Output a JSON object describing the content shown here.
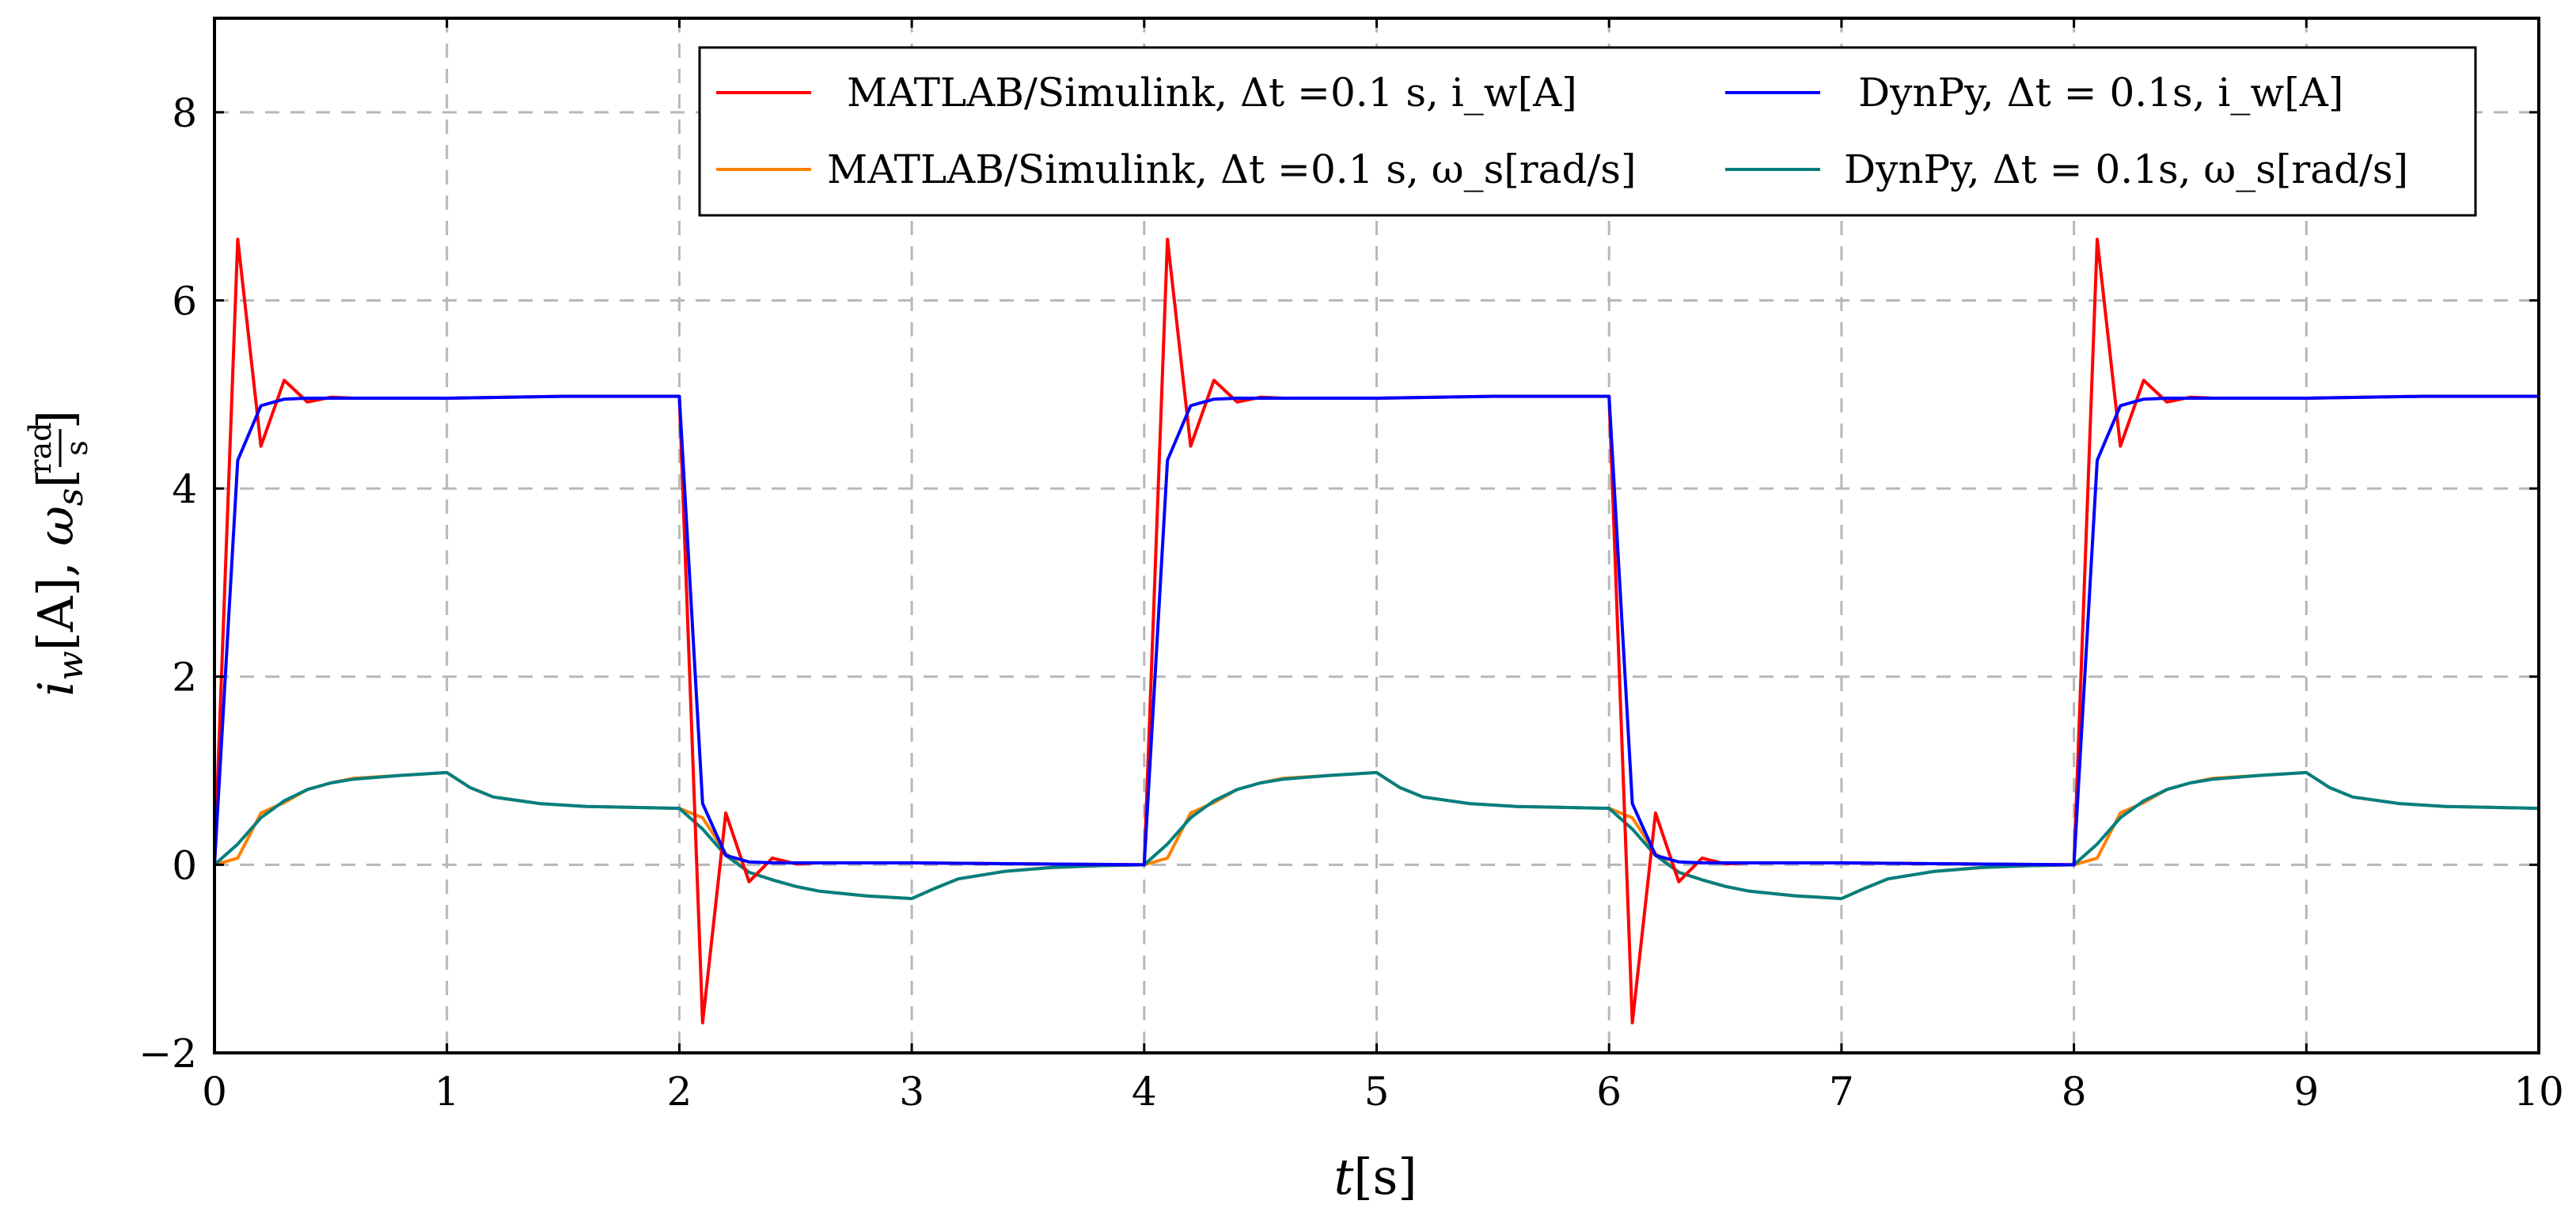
{
  "chart_data": {
    "type": "line",
    "title": "",
    "xlabel": "t[s]",
    "ylabel": "i_w[A], ω_s[rad/s]",
    "xlim": [
      0,
      10
    ],
    "ylim": [
      -2,
      9
    ],
    "grid": true,
    "legend_position": "top-right",
    "x_ticks": [
      0,
      1,
      2,
      3,
      4,
      5,
      6,
      7,
      8,
      9,
      10
    ],
    "y_ticks": [
      -2,
      0,
      2,
      4,
      6,
      8
    ],
    "x_tick_labels": [
      "0",
      "1",
      "2",
      "3",
      "4",
      "5",
      "6",
      "7",
      "8",
      "9",
      "10"
    ],
    "y_tick_labels": [
      "−2",
      "0",
      "2",
      "4",
      "6",
      "8"
    ],
    "x_label_var": "t",
    "x_label_unit": "[s]",
    "y_label_i": "i",
    "y_label_i_sub": "w",
    "y_label_i_unit": "[A], ",
    "y_label_w": "ω",
    "y_label_w_sub": "s",
    "y_label_frac_num": "rad",
    "y_label_frac_den": "s",
    "series": [
      {
        "name": "MATLAB/Simulink, Δt =0.1 s, i_w[A]",
        "legend_text": "MATLAB/Simulink, Δt =0.1 s, i_w[A]",
        "color": "#ff0000",
        "x": [
          0,
          0.1,
          0.2,
          0.3,
          0.4,
          0.5,
          0.6,
          1.0,
          1.5,
          2.0,
          2.1,
          2.2,
          2.3,
          2.4,
          2.5,
          2.6,
          3.0,
          3.5,
          4.0,
          4.1,
          4.2,
          4.3,
          4.4,
          4.5,
          4.6,
          5.0,
          5.5,
          6.0,
          6.1,
          6.2,
          6.3,
          6.4,
          6.5,
          6.6,
          7.0,
          7.5,
          8.0,
          8.1,
          8.2,
          8.3,
          8.4,
          8.5,
          8.6,
          9.0,
          9.5,
          10.0
        ],
        "values": [
          0,
          6.65,
          4.45,
          5.15,
          4.92,
          4.97,
          4.96,
          4.96,
          4.98,
          4.98,
          -1.68,
          0.55,
          -0.18,
          0.07,
          0.01,
          0.02,
          0.02,
          0.01,
          0.0,
          6.65,
          4.45,
          5.15,
          4.92,
          4.97,
          4.96,
          4.96,
          4.98,
          4.98,
          -1.68,
          0.55,
          -0.18,
          0.07,
          0.01,
          0.02,
          0.02,
          0.01,
          0.0,
          6.65,
          4.45,
          5.15,
          4.92,
          4.97,
          4.96,
          4.96,
          4.98,
          4.98
        ]
      },
      {
        "name": "DynPy, Δt = 0.1s, i_w[A]",
        "legend_text": "DynPy, Δt = 0.1s, i_w[A]",
        "color": "#0000ff",
        "x": [
          0,
          0.1,
          0.2,
          0.3,
          0.4,
          0.5,
          0.7,
          1.0,
          1.5,
          2.0,
          2.1,
          2.2,
          2.3,
          2.4,
          2.5,
          3.0,
          3.5,
          4.0,
          4.1,
          4.2,
          4.3,
          4.4,
          4.5,
          4.7,
          5.0,
          5.5,
          6.0,
          6.1,
          6.2,
          6.3,
          6.4,
          6.5,
          7.0,
          7.5,
          8.0,
          8.1,
          8.2,
          8.3,
          8.4,
          8.5,
          8.7,
          9.0,
          9.5,
          10.0
        ],
        "values": [
          0,
          4.3,
          4.88,
          4.95,
          4.96,
          4.96,
          4.96,
          4.96,
          4.98,
          4.98,
          0.65,
          0.1,
          0.03,
          0.02,
          0.02,
          0.02,
          0.01,
          0.0,
          4.3,
          4.88,
          4.95,
          4.96,
          4.96,
          4.96,
          4.96,
          4.98,
          4.98,
          0.65,
          0.1,
          0.03,
          0.02,
          0.02,
          0.02,
          0.01,
          0.0,
          4.3,
          4.88,
          4.95,
          4.96,
          4.96,
          4.96,
          4.96,
          4.98,
          4.98
        ]
      },
      {
        "name": "MATLAB/Simulink, Δt =0.1 s, ω_s[rad/s]",
        "legend_text": "MATLAB/Simulink, Δt =0.1 s, ω_s[rad/s]",
        "color": "#ff8000",
        "x": [
          0,
          0.1,
          0.2,
          0.3,
          0.4,
          0.5,
          0.6,
          0.8,
          1.0,
          1.1,
          1.2,
          1.4,
          1.6,
          1.8,
          2.0,
          2.1,
          2.2,
          2.3,
          2.4,
          2.5,
          2.6,
          2.8,
          3.0,
          3.1,
          3.2,
          3.4,
          3.6,
          3.8,
          4.0,
          4.1,
          4.2,
          4.3,
          4.4,
          4.5,
          4.6,
          4.8,
          5.0,
          5.1,
          5.2,
          5.4,
          5.6,
          5.8,
          6.0,
          6.1,
          6.2,
          6.3,
          6.4,
          6.5,
          6.6,
          6.8,
          7.0,
          7.1,
          7.2,
          7.4,
          7.6,
          7.8,
          8.0,
          8.1,
          8.2,
          8.3,
          8.4,
          8.5,
          8.6,
          8.8,
          9.0,
          9.1,
          9.2,
          9.4,
          9.6,
          9.8,
          10.0
        ],
        "values": [
          0,
          0.07,
          0.55,
          0.66,
          0.8,
          0.87,
          0.92,
          0.95,
          0.98,
          0.82,
          0.72,
          0.65,
          0.62,
          0.61,
          0.6,
          0.5,
          0.12,
          -0.08,
          -0.16,
          -0.23,
          -0.28,
          -0.33,
          -0.36,
          -0.25,
          -0.15,
          -0.07,
          -0.03,
          -0.01,
          0.0,
          0.07,
          0.55,
          0.66,
          0.8,
          0.87,
          0.92,
          0.95,
          0.98,
          0.82,
          0.72,
          0.65,
          0.62,
          0.61,
          0.6,
          0.5,
          0.12,
          -0.08,
          -0.16,
          -0.23,
          -0.28,
          -0.33,
          -0.36,
          -0.25,
          -0.15,
          -0.07,
          -0.03,
          -0.01,
          0.0,
          0.07,
          0.55,
          0.66,
          0.8,
          0.87,
          0.92,
          0.95,
          0.98,
          0.82,
          0.72,
          0.65,
          0.62,
          0.61,
          0.6
        ]
      },
      {
        "name": "DynPy, Δt = 0.1s, ω_s[rad/s]",
        "legend_text": "DynPy, Δt = 0.1s, ω_s[rad/s]",
        "color": "#007f7f",
        "x": [
          0,
          0.1,
          0.2,
          0.3,
          0.4,
          0.5,
          0.6,
          0.8,
          1.0,
          1.1,
          1.2,
          1.4,
          1.6,
          1.8,
          2.0,
          2.1,
          2.2,
          2.3,
          2.4,
          2.5,
          2.6,
          2.8,
          3.0,
          3.1,
          3.2,
          3.4,
          3.6,
          3.8,
          4.0,
          4.1,
          4.2,
          4.3,
          4.4,
          4.5,
          4.6,
          4.8,
          5.0,
          5.1,
          5.2,
          5.4,
          5.6,
          5.8,
          6.0,
          6.1,
          6.2,
          6.3,
          6.4,
          6.5,
          6.6,
          6.8,
          7.0,
          7.1,
          7.2,
          7.4,
          7.6,
          7.8,
          8.0,
          8.1,
          8.2,
          8.3,
          8.4,
          8.5,
          8.6,
          8.8,
          9.0,
          9.1,
          9.2,
          9.4,
          9.6,
          9.8,
          10.0
        ],
        "values": [
          0,
          0.22,
          0.5,
          0.68,
          0.8,
          0.87,
          0.91,
          0.95,
          0.98,
          0.82,
          0.72,
          0.65,
          0.62,
          0.61,
          0.6,
          0.38,
          0.1,
          -0.08,
          -0.16,
          -0.23,
          -0.28,
          -0.33,
          -0.36,
          -0.25,
          -0.15,
          -0.07,
          -0.03,
          -0.01,
          0.0,
          0.22,
          0.5,
          0.68,
          0.8,
          0.87,
          0.91,
          0.95,
          0.98,
          0.82,
          0.72,
          0.65,
          0.62,
          0.61,
          0.6,
          0.38,
          0.1,
          -0.08,
          -0.16,
          -0.23,
          -0.28,
          -0.33,
          -0.36,
          -0.25,
          -0.15,
          -0.07,
          -0.03,
          -0.01,
          0.0,
          0.22,
          0.5,
          0.68,
          0.8,
          0.87,
          0.91,
          0.95,
          0.98,
          0.82,
          0.72,
          0.65,
          0.62,
          0.61,
          0.6
        ]
      }
    ]
  }
}
